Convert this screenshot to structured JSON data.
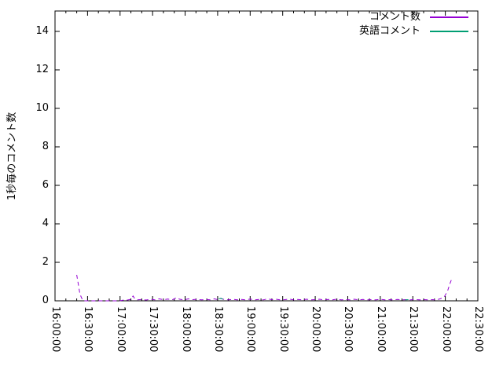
{
  "chart_data": {
    "type": "line",
    "title": "",
    "xlabel": "",
    "ylabel": "1秒毎のコメント数",
    "grid": "off",
    "legend_position": "top-right-inside",
    "x_unit": "minutes after 16:00",
    "x_range_minutes": [
      0,
      390
    ],
    "x_major_step_minutes": 30,
    "x_minor_step_minutes": 10,
    "x_tick_labels": [
      "16:00:00",
      "16:30:00",
      "17:00:00",
      "17:30:00",
      "18:00:00",
      "18:30:00",
      "19:00:00",
      "19:30:00",
      "20:00:00",
      "20:30:00",
      "21:00:00",
      "21:30:00",
      "22:00:00",
      "22:30:00"
    ],
    "y_ticks": [
      0,
      2,
      4,
      6,
      8,
      10,
      12,
      14
    ],
    "ylim": [
      0,
      15.06
    ],
    "series": [
      {
        "name": "コメント数",
        "color": "#9400d3",
        "style": "dashed",
        "segments": [
          [
            [
              20,
              1.35
            ],
            [
              21.5,
              0.85
            ],
            [
              23,
              0.35
            ],
            [
              25.5,
              0.02
            ],
            [
              26,
              0
            ],
            [
              60,
              0
            ],
            [
              64,
              0.05
            ],
            [
              67,
              0.04
            ],
            [
              70,
              0.08
            ],
            [
              72,
              0.25
            ],
            [
              73.5,
              0.12
            ],
            [
              76,
              0.05
            ],
            [
              80,
              0.07
            ],
            [
              84,
              0.04
            ],
            [
              88,
              0.08
            ],
            [
              92,
              0.05
            ],
            [
              96,
              0.1
            ],
            [
              100,
              0.06
            ],
            [
              104,
              0.09
            ],
            [
              108,
              0.05
            ],
            [
              112,
              0.16
            ],
            [
              115,
              0.08
            ],
            [
              119,
              0.05
            ],
            [
              123,
              0.1
            ],
            [
              127,
              0.06
            ],
            [
              131,
              0.08
            ],
            [
              135,
              0.05
            ],
            [
              139,
              0.07
            ],
            [
              143,
              0.05
            ],
            [
              147,
              0.1
            ],
            [
              150,
              0.06
            ],
            [
              153,
              0.12
            ],
            [
              156,
              0.07
            ],
            [
              160,
              0.05
            ],
            [
              164,
              0.08
            ],
            [
              168,
              0.05
            ],
            [
              172,
              0.07
            ],
            [
              176,
              0.05
            ],
            [
              180,
              0.09
            ],
            [
              184,
              0.05
            ],
            [
              188,
              0.07
            ],
            [
              192,
              0.05
            ],
            [
              196,
              0.1
            ],
            [
              200,
              0.06
            ],
            [
              204,
              0.08
            ],
            [
              208,
              0.05
            ],
            [
              212,
              0.06
            ],
            [
              216,
              0.09
            ],
            [
              220,
              0.05
            ],
            [
              224,
              0.07
            ],
            [
              228,
              0.05
            ],
            [
              232,
              0.08
            ],
            [
              236,
              0.05
            ],
            [
              240,
              0.06
            ],
            [
              244,
              0.08
            ],
            [
              248,
              0.05
            ],
            [
              252,
              0.07
            ],
            [
              256,
              0.05
            ],
            [
              260,
              0.09
            ],
            [
              264,
              0.05
            ],
            [
              268,
              0.06
            ],
            [
              272,
              0.05
            ],
            [
              276,
              0.08
            ],
            [
              280,
              0.05
            ],
            [
              284,
              0.07
            ],
            [
              288,
              0.05
            ],
            [
              292,
              0.06
            ],
            [
              296,
              0.05
            ],
            [
              300,
              0.08
            ],
            [
              304,
              0.05
            ],
            [
              308,
              0.06
            ],
            [
              312,
              0.05
            ],
            [
              316,
              0.07
            ],
            [
              320,
              0.05
            ],
            [
              324,
              0.06
            ],
            [
              328,
              0.05
            ],
            [
              332,
              0.07
            ],
            [
              336,
              0.05
            ],
            [
              340,
              0.06
            ],
            [
              344,
              0.05
            ],
            [
              348,
              0.06
            ],
            [
              351,
              0.05
            ],
            [
              354,
              0.08
            ],
            [
              356,
              0.12
            ],
            [
              359,
              0.2
            ],
            [
              362,
              0.5
            ],
            [
              364,
              0.85
            ],
            [
              366,
              1.15
            ]
          ]
        ]
      },
      {
        "name": "英語コメント",
        "color": "#009e73",
        "style": "solid",
        "segments": [
          [
            [
              151,
              0.1
            ],
            [
              153,
              0.13
            ],
            [
              155,
              0.08
            ]
          ],
          [
            [
              323,
              0.05
            ],
            [
              326,
              0.06
            ]
          ]
        ]
      }
    ]
  },
  "legend": {
    "entries": [
      {
        "label": "コメント数",
        "color": "#9400d3"
      },
      {
        "label": "英語コメント",
        "color": "#009e73"
      }
    ]
  },
  "colors": {
    "frame": "#000000",
    "text": "#000000",
    "background": "#ffffff"
  }
}
